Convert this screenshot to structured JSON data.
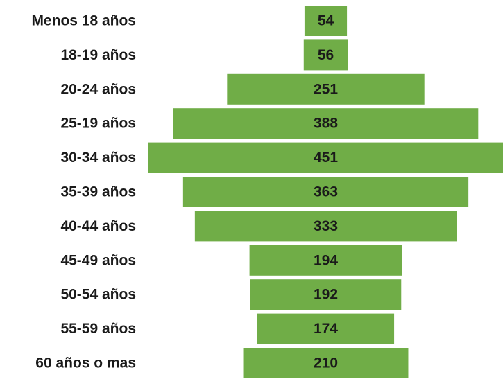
{
  "chart_data": {
    "type": "funnel",
    "categories": [
      "Menos 18 años",
      "18-19 años",
      "20-24 años",
      "25-19 años",
      "30-34 años",
      "35-39 años",
      "40-44 años",
      "45-49 años",
      "50-54 años",
      "55-59 años",
      "60 años o mas"
    ],
    "values": [
      54,
      56,
      251,
      388,
      451,
      363,
      333,
      194,
      192,
      174,
      210
    ],
    "color": "#70ad47"
  }
}
